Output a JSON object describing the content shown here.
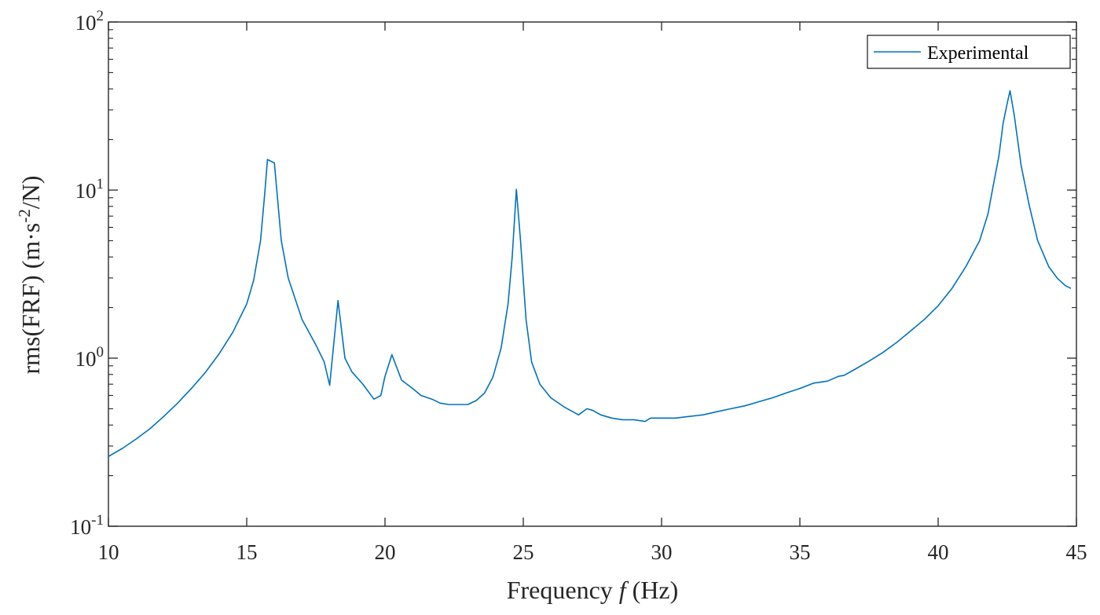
{
  "colors": {
    "series": "#0072BD",
    "axis": "#262626"
  },
  "chart_data": {
    "type": "line",
    "xlabel": {
      "prefix": "Frequency ",
      "variable": "f",
      "suffix": " (Hz)"
    },
    "ylabel": {
      "prefix": "rms(FRF) (m·s",
      "superscript": "-2",
      "suffix": "/N)"
    },
    "yscale": "log",
    "xlim": [
      10,
      45
    ],
    "ylim": [
      0.1,
      100
    ],
    "grid": false,
    "legend_position": "top-right",
    "x_ticks": [
      {
        "value": 10,
        "label": "10"
      },
      {
        "value": 15,
        "label": "15"
      },
      {
        "value": 20,
        "label": "20"
      },
      {
        "value": 25,
        "label": "25"
      },
      {
        "value": 30,
        "label": "30"
      },
      {
        "value": 35,
        "label": "35"
      },
      {
        "value": 40,
        "label": "40"
      },
      {
        "value": 45,
        "label": "45"
      }
    ],
    "y_ticks": [
      {
        "value": 0.1,
        "base": "10",
        "exp": "-1"
      },
      {
        "value": 1,
        "base": "10",
        "exp": "0"
      },
      {
        "value": 10,
        "base": "10",
        "exp": "1"
      },
      {
        "value": 100,
        "base": "10",
        "exp": "2"
      }
    ],
    "series": [
      {
        "name": "Experimental",
        "x": [
          10,
          10.5,
          11,
          11.5,
          12,
          12.5,
          13,
          13.5,
          14,
          14.5,
          15,
          15.25,
          15.5,
          15.65,
          15.75,
          16.0,
          16.25,
          16.5,
          17,
          17.5,
          17.8,
          18.0,
          18.3,
          18.55,
          18.8,
          19.2,
          19.6,
          19.85,
          20.0,
          20.25,
          20.6,
          21.0,
          21.3,
          21.7,
          22.0,
          22.3,
          22.6,
          23.0,
          23.3,
          23.6,
          23.9,
          24.2,
          24.45,
          24.6,
          24.75,
          24.9,
          25.1,
          25.3,
          25.6,
          26.0,
          26.5,
          27.0,
          27.3,
          27.5,
          27.8,
          28.2,
          28.6,
          29.0,
          29.4,
          29.6,
          29.8,
          30.0,
          30.5,
          31.0,
          31.5,
          32.0,
          32.5,
          33.0,
          33.5,
          34.0,
          34.5,
          35.0,
          35.5,
          36.0,
          36.4,
          36.6,
          37.0,
          37.5,
          38.0,
          38.5,
          39.0,
          39.5,
          40.0,
          40.5,
          41.0,
          41.5,
          41.8,
          42.0,
          42.2,
          42.35,
          42.5,
          42.6,
          42.75,
          43.0,
          43.3,
          43.6,
          44.0,
          44.3,
          44.6,
          44.8
        ],
        "y": [
          0.26,
          0.29,
          0.33,
          0.38,
          0.45,
          0.54,
          0.66,
          0.82,
          1.06,
          1.43,
          2.1,
          2.9,
          5.0,
          9.5,
          15.2,
          14.5,
          5.0,
          3.0,
          1.7,
          1.2,
          0.95,
          0.69,
          2.2,
          1.0,
          0.83,
          0.7,
          0.57,
          0.6,
          0.78,
          1.05,
          0.74,
          0.66,
          0.6,
          0.57,
          0.54,
          0.53,
          0.53,
          0.53,
          0.56,
          0.62,
          0.77,
          1.15,
          2.1,
          4.0,
          10.1,
          5.0,
          1.7,
          0.95,
          0.7,
          0.58,
          0.51,
          0.46,
          0.5,
          0.49,
          0.46,
          0.44,
          0.43,
          0.43,
          0.42,
          0.44,
          0.44,
          0.44,
          0.44,
          0.45,
          0.46,
          0.48,
          0.5,
          0.52,
          0.55,
          0.58,
          0.62,
          0.66,
          0.71,
          0.73,
          0.78,
          0.79,
          0.86,
          0.96,
          1.08,
          1.24,
          1.45,
          1.7,
          2.05,
          2.6,
          3.5,
          5.0,
          7.2,
          10.8,
          16,
          25,
          33,
          39,
          28,
          14,
          8.0,
          5.0,
          3.5,
          3.0,
          2.7,
          2.6
        ]
      }
    ]
  }
}
